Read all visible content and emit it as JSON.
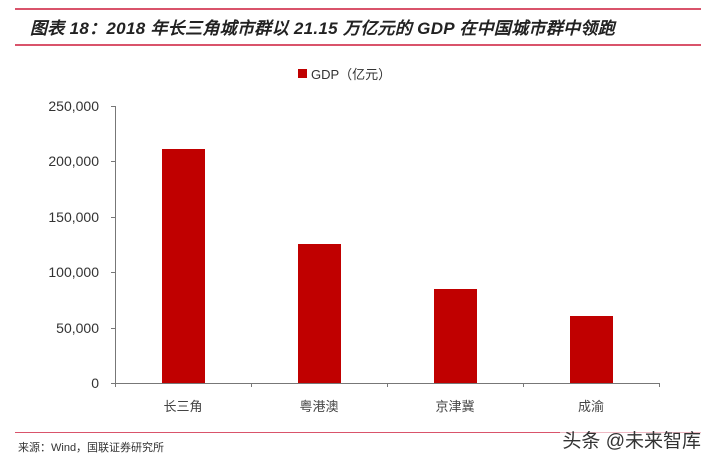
{
  "header": {
    "title": "图表 18：2018 年长三角城市群以 21.15 万亿元的 GDP 在中国城市群中领跑"
  },
  "footer": {
    "source": "来源：Wind，国联证券研究所",
    "watermark": "头条 @未来智库"
  },
  "colors": {
    "bar": "#c00000",
    "rule": "#d9536b",
    "axis": "#777777"
  },
  "chart_data": {
    "type": "bar",
    "title": "图表 18：2018 年长三角城市群以 21.15 万亿元的 GDP 在中国城市群中领跑",
    "xlabel": "",
    "ylabel": "",
    "legend": [
      "GDP（亿元）"
    ],
    "legend_position": "top",
    "grid": false,
    "categories": [
      "长三角",
      "粤港澳",
      "京津冀",
      "成渝"
    ],
    "series": [
      {
        "name": "GDP（亿元）",
        "values": [
          211500,
          125500,
          85000,
          60500
        ]
      }
    ],
    "ylim": [
      0,
      250000
    ],
    "yticks": [
      0,
      50000,
      100000,
      150000,
      200000,
      250000
    ],
    "ytick_labels": [
      "0",
      "50,000",
      "100,000",
      "150,000",
      "200,000",
      "250,000"
    ]
  }
}
